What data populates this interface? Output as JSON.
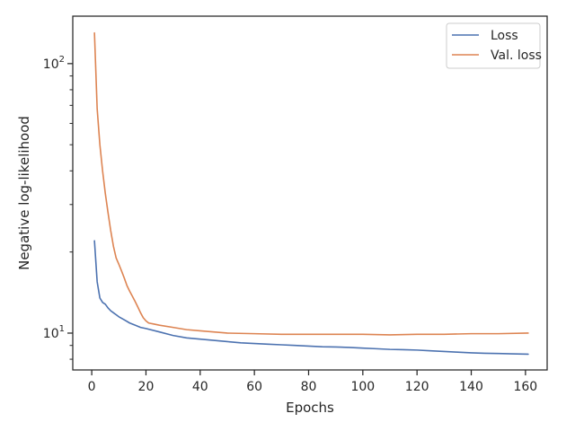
{
  "chart_data": {
    "type": "line",
    "xlabel": "Epochs",
    "ylabel": "Negative log-likelihood",
    "xlim": [
      -7,
      168
    ],
    "ylim": [
      7.3,
      150
    ],
    "yscale": "log",
    "grid": false,
    "legend_position": "top-right",
    "x_ticks": [
      0,
      20,
      40,
      60,
      80,
      100,
      120,
      140,
      160
    ],
    "x_tick_labels": [
      "0",
      "20",
      "40",
      "60",
      "80",
      "100",
      "120",
      "140",
      "160"
    ],
    "y_major_ticks": [
      10,
      100
    ],
    "y_major_tick_labels": [
      {
        "base": "10",
        "exp": "1"
      },
      {
        "base": "10",
        "exp": "2"
      }
    ],
    "y_minor_ticks": [
      8,
      9,
      20,
      30,
      40,
      50,
      60,
      70,
      80,
      90
    ],
    "series": [
      {
        "name": "Loss",
        "color": "#4c72b0",
        "points": [
          [
            1,
            22
          ],
          [
            2,
            15.5
          ],
          [
            3,
            13.5
          ],
          [
            4,
            13
          ],
          [
            5,
            12.8
          ],
          [
            6,
            12.4
          ],
          [
            7,
            12.1
          ],
          [
            8,
            11.9
          ],
          [
            9,
            11.7
          ],
          [
            10,
            11.5
          ],
          [
            12,
            11.2
          ],
          [
            14,
            10.9
          ],
          [
            16,
            10.7
          ],
          [
            18,
            10.5
          ],
          [
            20,
            10.4
          ],
          [
            25,
            10.1
          ],
          [
            30,
            9.8
          ],
          [
            35,
            9.6
          ],
          [
            40,
            9.5
          ],
          [
            45,
            9.4
          ],
          [
            50,
            9.3
          ],
          [
            55,
            9.2
          ],
          [
            60,
            9.15
          ],
          [
            65,
            9.1
          ],
          [
            70,
            9.05
          ],
          [
            75,
            9.0
          ],
          [
            80,
            8.95
          ],
          [
            85,
            8.9
          ],
          [
            90,
            8.88
          ],
          [
            95,
            8.85
          ],
          [
            100,
            8.8
          ],
          [
            105,
            8.75
          ],
          [
            110,
            8.7
          ],
          [
            115,
            8.68
          ],
          [
            120,
            8.65
          ],
          [
            125,
            8.6
          ],
          [
            130,
            8.55
          ],
          [
            135,
            8.5
          ],
          [
            140,
            8.45
          ],
          [
            145,
            8.42
          ],
          [
            150,
            8.4
          ],
          [
            155,
            8.38
          ],
          [
            161,
            8.35
          ]
        ]
      },
      {
        "name": "Val. loss",
        "color": "#dd8452",
        "points": [
          [
            1,
            130
          ],
          [
            2,
            68
          ],
          [
            3,
            50
          ],
          [
            4,
            40
          ],
          [
            5,
            33
          ],
          [
            6,
            28
          ],
          [
            7,
            24
          ],
          [
            8,
            21
          ],
          [
            9,
            19
          ],
          [
            10,
            18
          ],
          [
            11,
            17
          ],
          [
            12,
            16
          ],
          [
            13,
            15
          ],
          [
            14,
            14.3
          ],
          [
            15,
            13.7
          ],
          [
            16,
            13.1
          ],
          [
            17,
            12.5
          ],
          [
            18,
            11.9
          ],
          [
            19,
            11.4
          ],
          [
            20,
            11.1
          ],
          [
            21,
            10.9
          ],
          [
            23,
            10.8
          ],
          [
            25,
            10.7
          ],
          [
            30,
            10.5
          ],
          [
            35,
            10.3
          ],
          [
            40,
            10.2
          ],
          [
            45,
            10.1
          ],
          [
            50,
            10.0
          ],
          [
            60,
            9.95
          ],
          [
            70,
            9.9
          ],
          [
            80,
            9.9
          ],
          [
            90,
            9.9
          ],
          [
            100,
            9.9
          ],
          [
            110,
            9.85
          ],
          [
            120,
            9.9
          ],
          [
            130,
            9.9
          ],
          [
            140,
            9.95
          ],
          [
            150,
            9.95
          ],
          [
            161,
            10.0
          ]
        ]
      }
    ]
  }
}
